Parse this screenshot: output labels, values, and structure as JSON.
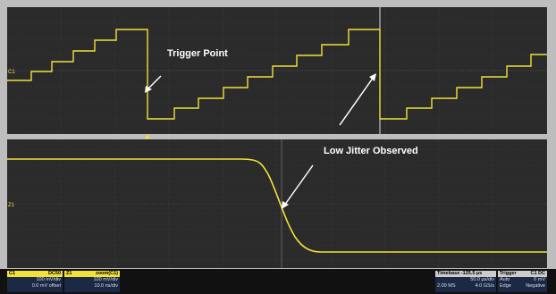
{
  "annotations": {
    "trigger_point": "Trigger Point",
    "low_jitter": "Low Jitter Observed"
  },
  "traces": {
    "top_label": "C1",
    "bottom_label": "Z1"
  },
  "status": {
    "c1": {
      "name": "C1",
      "coupling": "DC50",
      "line1": "100 mV/div",
      "line2": "0.0 mV offset"
    },
    "z1": {
      "name": "Z1",
      "source": "zoom(C1)",
      "line1": "100 mV/div",
      "line2": "10.0 ns/div"
    },
    "timebase": {
      "title": "Timebase -125.5 µs",
      "line1": "50.0 µs/div",
      "line2a": "2.00 MS",
      "line2b": "4.0 GS/s"
    },
    "trigger": {
      "title": "Trigger",
      "source": "C1 DC",
      "mode": "Auto",
      "level": "0 mV",
      "type": "Edge",
      "slope": "Negative"
    }
  }
}
